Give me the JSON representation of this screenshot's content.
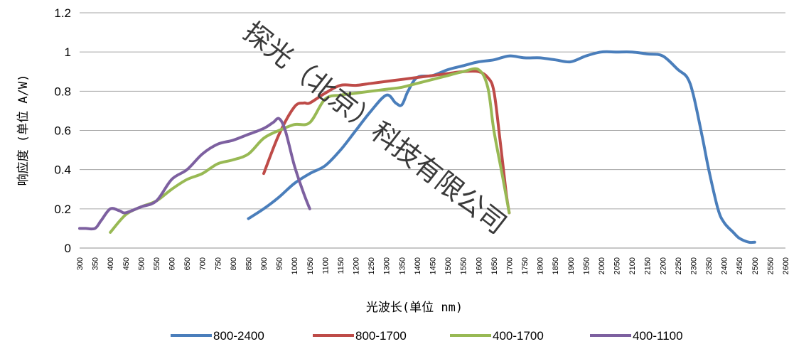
{
  "chart_data": {
    "type": "line",
    "xlabel": "光波长(单位 nm)",
    "ylabel": "响应度 (单位 A/W)",
    "x_ticks": [
      300,
      350,
      400,
      450,
      500,
      550,
      600,
      650,
      700,
      750,
      800,
      850,
      900,
      950,
      1000,
      1050,
      1100,
      1150,
      1200,
      1250,
      1300,
      1350,
      1400,
      1450,
      1500,
      1550,
      1600,
      1650,
      1700,
      1750,
      1800,
      1850,
      1900,
      1950,
      2000,
      2050,
      2100,
      2150,
      2200,
      2250,
      2300,
      2350,
      2400,
      2450,
      2500,
      2550,
      2600
    ],
    "y_ticks": [
      "0",
      "0.2",
      "0.4",
      "0.6",
      "0.8",
      "1",
      "1.2"
    ],
    "xlim": [
      300,
      2600
    ],
    "ylim": [
      0,
      1.2
    ],
    "grid": "horizontal",
    "legend_position": "bottom",
    "watermark": "探光（北京）科技有限公司",
    "series": [
      {
        "name": "800-2400",
        "color": "#4a7ebb",
        "x": [
          850,
          900,
          950,
          1000,
          1050,
          1100,
          1150,
          1200,
          1250,
          1300,
          1330,
          1350,
          1370,
          1400,
          1450,
          1500,
          1550,
          1600,
          1650,
          1700,
          1750,
          1800,
          1850,
          1900,
          1950,
          2000,
          2050,
          2100,
          2150,
          2200,
          2250,
          2280,
          2300,
          2330,
          2350,
          2380,
          2400,
          2430,
          2450,
          2480,
          2500
        ],
        "y": [
          0.15,
          0.2,
          0.26,
          0.33,
          0.38,
          0.42,
          0.5,
          0.6,
          0.7,
          0.78,
          0.74,
          0.73,
          0.8,
          0.87,
          0.88,
          0.91,
          0.93,
          0.95,
          0.96,
          0.98,
          0.97,
          0.97,
          0.96,
          0.95,
          0.98,
          1.0,
          1.0,
          1.0,
          0.99,
          0.98,
          0.91,
          0.87,
          0.78,
          0.56,
          0.4,
          0.2,
          0.13,
          0.08,
          0.05,
          0.03,
          0.03
        ]
      },
      {
        "name": "800-1700",
        "color": "#be4b48",
        "x": [
          900,
          950,
          1000,
          1030,
          1050,
          1100,
          1150,
          1200,
          1250,
          1300,
          1350,
          1400,
          1450,
          1500,
          1550,
          1600,
          1630,
          1650,
          1670,
          1690,
          1700
        ],
        "y": [
          0.38,
          0.58,
          0.72,
          0.74,
          0.74,
          0.79,
          0.83,
          0.83,
          0.84,
          0.85,
          0.86,
          0.87,
          0.88,
          0.89,
          0.9,
          0.9,
          0.87,
          0.8,
          0.55,
          0.28,
          0.18
        ]
      },
      {
        "name": "400-1700",
        "color": "#98b954",
        "x": [
          400,
          450,
          500,
          550,
          600,
          650,
          700,
          750,
          800,
          850,
          900,
          950,
          1000,
          1050,
          1100,
          1150,
          1200,
          1250,
          1300,
          1350,
          1400,
          1450,
          1500,
          1550,
          1600,
          1630,
          1650,
          1680,
          1700
        ],
        "y": [
          0.08,
          0.17,
          0.21,
          0.24,
          0.3,
          0.35,
          0.38,
          0.43,
          0.45,
          0.48,
          0.56,
          0.6,
          0.63,
          0.64,
          0.76,
          0.78,
          0.79,
          0.8,
          0.81,
          0.82,
          0.84,
          0.86,
          0.88,
          0.9,
          0.91,
          0.82,
          0.6,
          0.35,
          0.18
        ]
      },
      {
        "name": "400-1100",
        "color": "#7d60a0",
        "x": [
          300,
          320,
          350,
          370,
          400,
          430,
          450,
          500,
          550,
          600,
          650,
          700,
          750,
          800,
          850,
          900,
          930,
          950,
          970,
          1000,
          1030,
          1050
        ],
        "y": [
          0.1,
          0.1,
          0.1,
          0.14,
          0.2,
          0.19,
          0.18,
          0.21,
          0.24,
          0.35,
          0.4,
          0.48,
          0.53,
          0.55,
          0.58,
          0.61,
          0.64,
          0.66,
          0.6,
          0.42,
          0.28,
          0.2
        ]
      }
    ]
  }
}
